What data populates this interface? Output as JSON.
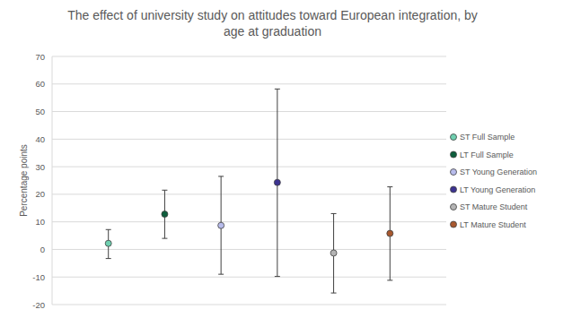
{
  "chart_data": {
    "type": "scatter",
    "title": "The effect of university study on attitudes toward European integration, by age at graduation",
    "y_label": "Percentage points",
    "categories": [
      null,
      null,
      null,
      null,
      null,
      null
    ],
    "ylim": [
      -20,
      70
    ],
    "yticks": [
      -20,
      -10,
      0,
      10,
      20,
      30,
      40,
      50,
      60,
      70
    ],
    "grid": true,
    "legend": "right",
    "tick_labels": "y",
    "marker": "circle",
    "series": [
      {
        "name": "ST Full Sample",
        "color": "#6fd0b0",
        "values": [
          2.2,
          null,
          null,
          null,
          null,
          null
        ],
        "error_low": [
          -3.3,
          null,
          null,
          null,
          null,
          null
        ],
        "error_high": [
          7.2,
          null,
          null,
          null,
          null,
          null
        ]
      },
      {
        "name": "LT Full Sample",
        "color": "#0d5e3c",
        "values": [
          null,
          12.8,
          null,
          null,
          null,
          null
        ],
        "error_low": [
          null,
          4.0,
          null,
          null,
          null,
          null
        ],
        "error_high": [
          null,
          21.5,
          null,
          null,
          null,
          null
        ]
      },
      {
        "name": "ST Young Generation",
        "color": "#b8bcec",
        "values": [
          null,
          null,
          8.7,
          null,
          null,
          null
        ],
        "error_low": [
          null,
          null,
          -9.0,
          null,
          null,
          null
        ],
        "error_high": [
          null,
          null,
          26.5,
          null,
          null,
          null
        ]
      },
      {
        "name": "LT Young Generation",
        "color": "#3c3391",
        "values": [
          null,
          null,
          null,
          24.3,
          null,
          null
        ],
        "error_low": [
          null,
          null,
          null,
          -9.8,
          null,
          null
        ],
        "error_high": [
          null,
          null,
          null,
          58.2,
          null,
          null
        ]
      },
      {
        "name": "ST Mature Student",
        "color": "#b4b4b4",
        "values": [
          null,
          null,
          null,
          null,
          -1.3,
          null
        ],
        "error_low": [
          null,
          null,
          null,
          null,
          -15.8,
          null
        ],
        "error_high": [
          null,
          null,
          null,
          null,
          13.0,
          null
        ]
      },
      {
        "name": "LT Mature Student",
        "color": "#a8582e",
        "values": [
          null,
          null,
          null,
          null,
          null,
          5.8
        ],
        "error_low": [
          null,
          null,
          null,
          null,
          null,
          -11.2
        ],
        "error_high": [
          null,
          null,
          null,
          null,
          null,
          22.7
        ]
      }
    ]
  }
}
